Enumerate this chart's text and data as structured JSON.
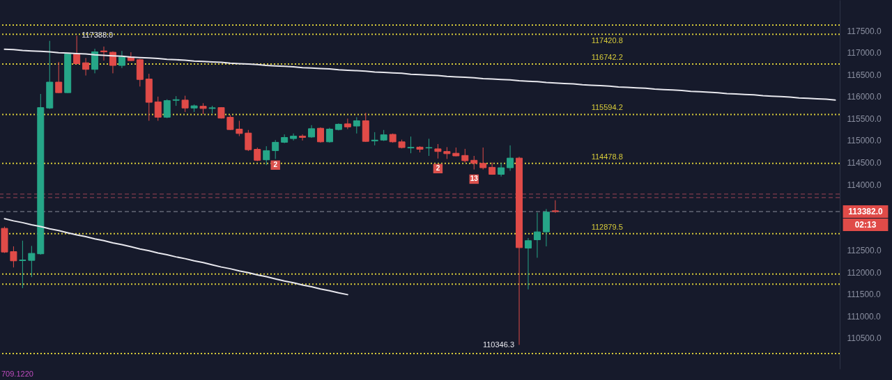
{
  "chart_data": {
    "type": "candlestick",
    "categories": [
      null,
      null,
      null,
      null,
      null,
      null,
      null,
      null,
      null,
      null,
      null,
      null,
      null,
      null,
      null,
      null,
      null,
      null,
      null,
      null,
      null,
      null,
      null,
      null,
      null,
      null,
      null,
      null,
      null,
      null,
      null,
      null,
      null,
      null,
      null,
      null,
      null,
      null,
      null,
      null,
      null,
      null,
      null,
      null,
      null,
      null,
      null,
      null,
      null,
      null,
      null,
      null,
      null,
      null,
      null,
      null,
      null,
      null,
      null,
      null,
      null,
      null,
      null,
      null,
      null,
      null,
      null,
      null,
      null,
      null,
      null,
      null,
      null,
      null,
      null,
      null,
      null,
      null,
      null,
      null,
      null,
      null,
      null,
      null,
      null,
      null,
      null,
      null,
      null,
      null,
      null,
      null,
      null
    ],
    "ohlc": [
      [
        113000,
        113040,
        112440,
        112460
      ],
      [
        112470,
        112590,
        112110,
        112260
      ],
      [
        112265,
        112720,
        111640,
        112280
      ],
      [
        112270,
        112600,
        111890,
        112430
      ],
      [
        112420,
        116060,
        112400,
        115750
      ],
      [
        115740,
        117270,
        115720,
        116330
      ],
      [
        116330,
        116790,
        116080,
        116090
      ],
      [
        116090,
        116990,
        116080,
        116970
      ],
      [
        116970,
        117388,
        116740,
        116750
      ],
      [
        116770,
        116880,
        116480,
        116620
      ],
      [
        116620,
        117090,
        116530,
        117020
      ],
      [
        117040,
        117140,
        116820,
        117020
      ],
      [
        117010,
        117030,
        116530,
        116710
      ],
      [
        116710,
        117040,
        116650,
        116900
      ],
      [
        116900,
        117010,
        116810,
        116820
      ],
      [
        116840,
        116860,
        116230,
        116390
      ],
      [
        116400,
        116520,
        115450,
        115870
      ],
      [
        115880,
        116000,
        115450,
        115530
      ],
      [
        115530,
        115940,
        115510,
        115910
      ],
      [
        115915,
        116010,
        115790,
        115930
      ],
      [
        115920,
        116020,
        115650,
        115740
      ],
      [
        115740,
        115820,
        115650,
        115790
      ],
      [
        115780,
        115850,
        115600,
        115730
      ],
      [
        115730,
        115790,
        115620,
        115745
      ],
      [
        115750,
        115760,
        115500,
        115510
      ],
      [
        115530,
        115580,
        115240,
        115250
      ],
      [
        115260,
        115450,
        115100,
        115160
      ],
      [
        115170,
        115240,
        114760,
        114790
      ],
      [
        114800,
        114840,
        114530,
        114550
      ],
      [
        114560,
        114870,
        114440,
        114770
      ],
      [
        114770,
        115010,
        114580,
        114960
      ],
      [
        114960,
        115140,
        114940,
        115070
      ],
      [
        115045,
        115160,
        115000,
        115100
      ],
      [
        115100,
        115140,
        115000,
        115070
      ],
      [
        115080,
        115350,
        115060,
        115270
      ],
      [
        115280,
        115300,
        114950,
        114970
      ],
      [
        114970,
        115290,
        114950,
        115260
      ],
      [
        115250,
        115390,
        115230,
        115370
      ],
      [
        115380,
        115500,
        115260,
        115310
      ],
      [
        115330,
        115530,
        115160,
        115450
      ],
      [
        115450,
        115630,
        114970,
        114980
      ],
      [
        114990,
        115190,
        114890,
        115010
      ],
      [
        115010,
        115240,
        114990,
        115130
      ],
      [
        115140,
        115160,
        114950,
        114970
      ],
      [
        114970,
        115020,
        114820,
        114840
      ],
      [
        114830,
        115090,
        114710,
        114845
      ],
      [
        114850,
        114870,
        114730,
        114800
      ],
      [
        114830,
        115040,
        114650,
        114840
      ],
      [
        114810,
        114920,
        114590,
        114750
      ],
      [
        114750,
        114850,
        114580,
        114700
      ],
      [
        114710,
        114840,
        114640,
        114650
      ],
      [
        114660,
        114810,
        114500,
        114540
      ],
      [
        114550,
        114650,
        114340,
        114480
      ],
      [
        114480,
        114840,
        114340,
        114380
      ],
      [
        114390,
        114500,
        114220,
        114230
      ],
      [
        114230,
        114490,
        114180,
        114380
      ],
      [
        114380,
        114890,
        114310,
        114600
      ],
      [
        114600,
        114630,
        110346.3,
        112560
      ],
      [
        112550,
        112780,
        111610,
        112720
      ],
      [
        112740,
        113360,
        112330,
        112920
      ],
      [
        112920,
        113440,
        112590,
        113370
      ],
      [
        113400,
        113640,
        113350,
        113382
      ],
      null,
      null,
      null,
      null,
      null,
      null,
      null,
      null,
      null,
      null,
      null,
      null,
      null,
      null,
      null,
      null,
      null,
      null,
      null,
      null,
      null,
      null,
      null,
      null,
      null,
      null,
      null,
      null,
      null,
      null,
      null
    ],
    "colors": [
      "#e04b48",
      "#e04b48",
      "#26a688",
      "#26a688",
      "#26a688",
      "#26a688",
      "#e04b48",
      "#26a688",
      "#e04b48",
      "#e04b48",
      "#26a688",
      "#e04b48",
      "#e04b48",
      "#26a688",
      "#e04b48",
      "#e04b48",
      "#e04b48",
      "#e04b48",
      "#26a688",
      "#26a688",
      "#e04b48",
      "#26a688",
      "#e04b48",
      "#26a688",
      "#e04b48",
      "#e04b48",
      "#e04b48",
      "#e04b48",
      "#e04b48",
      "#26a688",
      "#26a688",
      "#26a688",
      "#26a688",
      "#e04b48",
      "#26a688",
      "#e04b48",
      "#26a688",
      "#26a688",
      "#e04b48",
      "#26a688",
      "#e04b48",
      "#26a688",
      "#26a688",
      "#e04b48",
      "#e04b48",
      "#26a688",
      "#e04b48",
      "#26a688",
      "#e04b48",
      "#e04b48",
      "#e04b48",
      "#e04b48",
      "#e04b48",
      "#e04b48",
      "#e04b48",
      "#26a688",
      "#26a688",
      "#e04b48",
      "#26a688",
      "#26a688",
      "#26a688",
      "#e04b48",
      null,
      null,
      null,
      null,
      null,
      null,
      null,
      null,
      null,
      null,
      null,
      null,
      null,
      null,
      null,
      null,
      null,
      null,
      null,
      null,
      null,
      null,
      null,
      null,
      null,
      null,
      null,
      null,
      null,
      null,
      null
    ],
    "value_labels": [
      null,
      null,
      null,
      null,
      null,
      null,
      null,
      null,
      "117388.0",
      null,
      null,
      null,
      null,
      null,
      null,
      null,
      null,
      null,
      null,
      null,
      null,
      null,
      null,
      null,
      null,
      null,
      null,
      null,
      null,
      null,
      null,
      null,
      null,
      null,
      null,
      null,
      null,
      null,
      null,
      null,
      null,
      null,
      null,
      null,
      null,
      null,
      null,
      null,
      null,
      null,
      null,
      null,
      null,
      null,
      null,
      null,
      null,
      "110346.3",
      null,
      null,
      null,
      null,
      null,
      null,
      null,
      null,
      null,
      null,
      null,
      null,
      null,
      null,
      null,
      null,
      null,
      null,
      null,
      null,
      null,
      null,
      null,
      null,
      null,
      null,
      null,
      null,
      null,
      null,
      null,
      null,
      null,
      null,
      null
    ],
    "series": [
      {
        "type": "line",
        "color": "#e8e8ee",
        "line_style": "solid",
        "values": [
          117080,
          117070,
          117050,
          117040,
          117030,
          117020,
          117000,
          116990,
          116980,
          116970,
          116950,
          116940,
          116930,
          116920,
          116900,
          116890,
          116880,
          116870,
          116850,
          116840,
          116830,
          116810,
          116800,
          116790,
          116780,
          116760,
          116750,
          116740,
          116730,
          116710,
          116700,
          116690,
          116680,
          116660,
          116650,
          116640,
          116630,
          116610,
          116600,
          116590,
          116580,
          116560,
          116550,
          116540,
          116530,
          116510,
          116500,
          116490,
          116480,
          116460,
          116450,
          116440,
          116430,
          116410,
          116400,
          116390,
          116380,
          116360,
          116350,
          116340,
          116320,
          116310,
          116300,
          116290,
          116270,
          116260,
          116250,
          116240,
          116220,
          116210,
          116200,
          116190,
          116170,
          116160,
          116150,
          116140,
          116120,
          116110,
          116100,
          116090,
          116070,
          116060,
          116050,
          116040,
          116020,
          116010,
          116000,
          115990,
          115970,
          115960,
          115950,
          115940,
          115920
        ]
      },
      {
        "type": "line",
        "color": "#e8e8ee",
        "line_style": "solid",
        "values": [
          113220,
          113170,
          113130,
          113080,
          113040,
          112990,
          112950,
          112900,
          112850,
          112810,
          112760,
          112720,
          112670,
          112630,
          112580,
          112530,
          112490,
          112440,
          112400,
          112350,
          112310,
          112260,
          112220,
          112170,
          112120,
          112080,
          112030,
          111990,
          111940,
          111900,
          111850,
          111800,
          111760,
          111710,
          111670,
          111620,
          111580,
          111530,
          111490,
          null,
          null,
          null,
          null,
          null,
          null,
          null,
          null,
          null,
          null,
          null,
          null,
          null,
          null,
          null,
          null,
          null,
          null,
          null,
          null,
          null,
          null,
          null,
          null,
          null,
          null,
          null,
          null,
          null,
          null,
          null,
          null,
          null,
          null,
          null,
          null,
          null,
          null,
          null,
          null,
          null,
          null,
          null,
          null,
          null,
          null,
          null,
          null,
          null,
          null,
          null,
          null,
          null,
          null
        ]
      },
      {
        "type": "scatter",
        "name": "2",
        "color": "#d9504c",
        "marker": "square",
        "values": [
          null,
          null,
          null,
          null,
          null,
          null,
          null,
          null,
          null,
          null,
          null,
          null,
          null,
          null,
          null,
          null,
          null,
          null,
          null,
          null,
          null,
          null,
          null,
          null,
          null,
          null,
          null,
          null,
          null,
          null,
          114440,
          null,
          null,
          null,
          null,
          null,
          null,
          null,
          null,
          null,
          null,
          null,
          null,
          null,
          null,
          null,
          null,
          null,
          null,
          null,
          null,
          null,
          null,
          null,
          null,
          null,
          null,
          null,
          null,
          null,
          null,
          null,
          null,
          null,
          null,
          null,
          null,
          null,
          null,
          null,
          null,
          null,
          null,
          null,
          null,
          null,
          null,
          null,
          null,
          null,
          null,
          null,
          null,
          null,
          null,
          null,
          null,
          null,
          null,
          null,
          null,
          null,
          null
        ]
      },
      {
        "type": "scatter",
        "name": "2",
        "color": "#d9504c",
        "marker": "square",
        "values": [
          null,
          null,
          null,
          null,
          null,
          null,
          null,
          null,
          null,
          null,
          null,
          null,
          null,
          null,
          null,
          null,
          null,
          null,
          null,
          null,
          null,
          null,
          null,
          null,
          null,
          null,
          null,
          null,
          null,
          null,
          null,
          null,
          null,
          null,
          null,
          null,
          null,
          null,
          null,
          null,
          null,
          null,
          null,
          null,
          null,
          null,
          null,
          null,
          114360,
          null,
          null,
          null,
          null,
          null,
          null,
          null,
          null,
          null,
          null,
          null,
          null,
          null,
          null,
          null,
          null,
          null,
          null,
          null,
          null,
          null,
          null,
          null,
          null,
          null,
          null,
          null,
          null,
          null,
          null,
          null,
          null,
          null,
          null,
          null,
          null,
          null,
          null,
          null,
          null,
          null,
          null,
          null,
          null
        ]
      },
      {
        "type": "scatter",
        "name": "13",
        "color": "#d9504c",
        "marker": "square",
        "values": [
          null,
          null,
          null,
          null,
          null,
          null,
          null,
          null,
          null,
          null,
          null,
          null,
          null,
          null,
          null,
          null,
          null,
          null,
          null,
          null,
          null,
          null,
          null,
          null,
          null,
          null,
          null,
          null,
          null,
          null,
          null,
          null,
          null,
          null,
          null,
          null,
          null,
          null,
          null,
          null,
          null,
          null,
          null,
          null,
          null,
          null,
          null,
          null,
          null,
          null,
          null,
          null,
          114120,
          null,
          null,
          null,
          null,
          null,
          null,
          null,
          null,
          null,
          null,
          null,
          null,
          null,
          null,
          null,
          null,
          null,
          null,
          null,
          null,
          null,
          null,
          null,
          null,
          null,
          null,
          null,
          null,
          null,
          null,
          null,
          null,
          null,
          null,
          null,
          null,
          null,
          null,
          null,
          null
        ]
      }
    ],
    "ylim": [
      109800,
      118200
    ],
    "yticks": [
      {
        "value": 110500,
        "label": "110500.0"
      },
      {
        "value": 111000,
        "label": "111000.0"
      },
      {
        "value": 111500,
        "label": "111500.0"
      },
      {
        "value": 112000,
        "label": "112000.0"
      },
      {
        "value": 112500,
        "label": "112500.0"
      },
      {
        "value": 114000,
        "label": "114000.0"
      },
      {
        "value": 114500,
        "label": "114500.0"
      },
      {
        "value": 115000,
        "label": "115000.0"
      },
      {
        "value": 115500,
        "label": "115500.0"
      },
      {
        "value": 116000,
        "label": "116000.0"
      },
      {
        "value": 116500,
        "label": "116500.0"
      },
      {
        "value": 117000,
        "label": "117000.0"
      },
      {
        "value": 117500,
        "label": "117500.0"
      }
    ],
    "tick_labels": "y",
    "ref_lines": [
      {
        "axis": "y",
        "value": 117630,
        "color": "#d8cc3a",
        "line_style": "dotted"
      },
      {
        "axis": "y",
        "value": 117420.8,
        "label": "117420.8",
        "color": "#d8cc3a",
        "line_style": "dotted"
      },
      {
        "axis": "y",
        "value": 116742.2,
        "label": "116742.2",
        "color": "#d8cc3a",
        "line_style": "dotted"
      },
      {
        "axis": "y",
        "value": 115594.2,
        "label": "115594.2",
        "color": "#d8cc3a",
        "line_style": "dotted"
      },
      {
        "axis": "y",
        "value": 114478.8,
        "label": "114478.8",
        "color": "#d8cc3a",
        "line_style": "dotted"
      },
      {
        "axis": "y",
        "value": 112879.5,
        "label": "112879.5",
        "color": "#d8cc3a",
        "line_style": "dotted"
      },
      {
        "axis": "y",
        "value": 111960,
        "color": "#d8cc3a",
        "line_style": "dotted"
      },
      {
        "axis": "y",
        "value": 111730,
        "color": "#d8cc3a",
        "line_style": "dotted"
      },
      {
        "axis": "y",
        "value": 110150,
        "color": "#d8cc3a",
        "line_style": "dotted"
      },
      {
        "axis": "y",
        "value": 113780,
        "color": "#9c4456",
        "line_style": "dashed"
      },
      {
        "axis": "y",
        "value": 113700,
        "color": "#9c4456",
        "line_style": "dashed"
      },
      {
        "axis": "y",
        "value": 113382,
        "label": "113382.0",
        "color": "#8a8f9c",
        "line_style": "dashed"
      }
    ],
    "annotations": [
      "02:13",
      "709.1220"
    ]
  }
}
